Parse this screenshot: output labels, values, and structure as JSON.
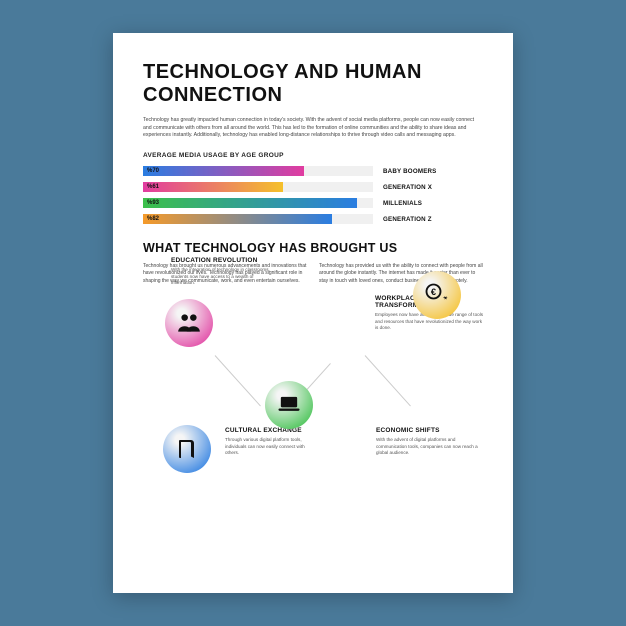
{
  "title": "TECHNOLOGY AND HUMAN CONNECTION",
  "intro": "Technology has greatly impacted human connection in today's society. With the advent of social media platforms, people can now easily connect and communicate with others from all around the world. This has led to the formation of online communities and the ability to share ideas and experiences instantly. Additionally, technology has enabled long-distance relationships to thrive through video calls and messaging apps.",
  "chart": {
    "title": "AVERAGE MEDIA USAGE BY AGE GROUP",
    "type": "bar",
    "track_bg": "#f0f0f0",
    "max": 100,
    "bars": [
      {
        "value": 70,
        "label": "%70",
        "category": "BABY BOOMERS",
        "gradient": [
          "#2a7de1",
          "#e13ca0"
        ]
      },
      {
        "value": 61,
        "label": "%61",
        "category": "GENERATION X",
        "gradient": [
          "#e13ca0",
          "#f5c02a"
        ]
      },
      {
        "value": 93,
        "label": "%93",
        "category": "MILLENIALS",
        "gradient": [
          "#3cc04a",
          "#2a7de1"
        ]
      },
      {
        "value": 82,
        "label": "%82",
        "category": "GENERATION Z",
        "gradient": [
          "#f59a2a",
          "#2a7de1"
        ]
      }
    ]
  },
  "section2": {
    "title": "WHAT TECHNOLOGY HAS BROUGHT US",
    "col1": "Technology has brought us numerous advancements and innovations that have revolutionized our lives. Technology has played a significant role in shaping the way we communicate, work, and even entertain ourselves.",
    "col2": "Technology has provided us with the ability to connect with people from all around the globe instantly. The internet has made it easier than ever to stay in touch with loved ones, conduct business meetings remotely."
  },
  "icons": {
    "education": {
      "title": "EDUCATION REVOLUTION",
      "desc": "With the integration of technology in classrooms, students now have access to a wealth of information.",
      "gradient": [
        "#e13ca0",
        "#f5f5f5"
      ],
      "icon_color": "#111"
    },
    "workplace": {
      "title": "WORKPLACE TRANSFORMATION",
      "desc": "Employees now have access to a wide range of tools and resources that have revolutionized the way work is done.",
      "gradient": [
        "#f5c02a",
        "#f5f5f5"
      ],
      "icon_color": "#111"
    },
    "cultural": {
      "title": "CULTURAL EXCHANGE",
      "desc": "Through various digital platform tools, individuals can now easily connect with others.",
      "gradient": [
        "#2a7de1",
        "#f5f5f5"
      ],
      "icon_color": "#111"
    },
    "economic": {
      "title": "ECONOMIC SHIFTS",
      "desc": "With the advent of digital platforms and communication tools, companies can now reach a global audience.",
      "gradient": [
        "#3cc04a",
        "#f5f5f5"
      ],
      "icon_color": "#111"
    }
  },
  "colors": {
    "page_bg": "#4a7a9a",
    "paper_bg": "#ffffff",
    "text": "#111111",
    "body_text": "#444444"
  }
}
